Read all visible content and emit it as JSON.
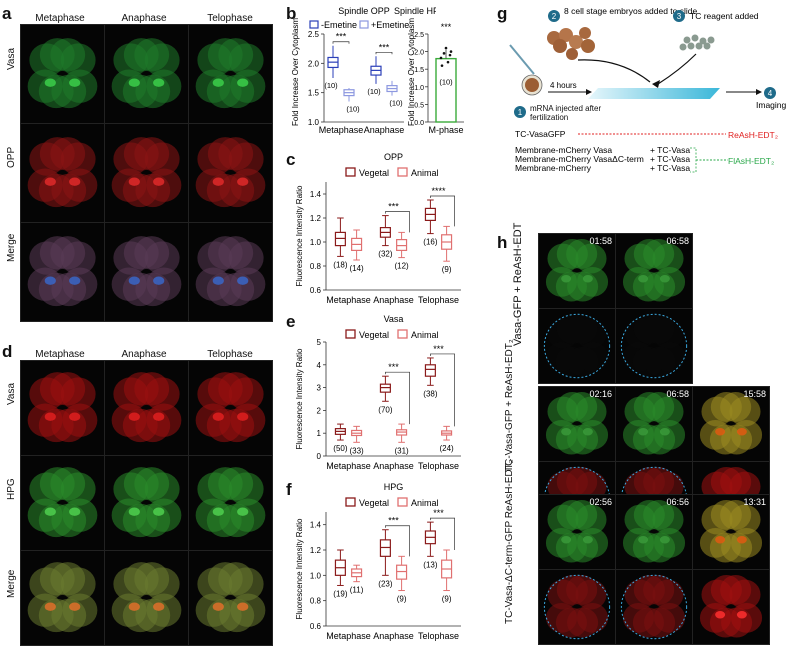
{
  "panels": {
    "a": {
      "label": "a",
      "cols": [
        "Metaphase",
        "Anaphase",
        "Telophase"
      ],
      "rows": [
        "Vasa",
        "OPP",
        "Merge"
      ],
      "annot": {
        "a": "a",
        "i": "i"
      }
    },
    "d": {
      "label": "d",
      "cols": [
        "Metaphase",
        "Anaphase",
        "Telophase"
      ],
      "rows": [
        "Vasa",
        "HPG",
        "Merge"
      ],
      "annot": {
        "a": "a",
        "i": "i"
      }
    },
    "b": {
      "label": "b",
      "title1": "Spindle OPP",
      "title2": "Spindle HPG",
      "legend": [
        "-Emetine",
        "+Emetine"
      ],
      "ylabel": "Fold Increase Over Cytoplasm",
      "sig": "***",
      "xticks": [
        "Metaphase",
        "Anaphase"
      ],
      "xtick2": "M-phase",
      "n1": [
        "(10)",
        "(10)",
        "(10)",
        "(10)"
      ],
      "n2": "(10)",
      "yticks1": [
        "1.0",
        "1.5",
        "2.0",
        "2.5"
      ],
      "yticks2": [
        "0.0",
        "0.5",
        "1.0",
        "1.5",
        "2.0",
        "2.5"
      ]
    },
    "c": {
      "label": "c",
      "title": "OPP",
      "legend": [
        "Vegetal",
        "Animal"
      ],
      "ylabel": "Fluorescence Intensity Ratio",
      "xticks": [
        "Metaphase",
        "Anaphase",
        "Telophase"
      ],
      "yticks": [
        "0.6",
        "0.8",
        "1.0",
        "1.2",
        "1.4"
      ],
      "n": [
        "(18)",
        "(14)",
        "(32)",
        "(12)",
        "(16)",
        "(9)"
      ],
      "sig": [
        "***",
        "****"
      ]
    },
    "e": {
      "label": "e",
      "title": "Vasa",
      "legend": [
        "Vegetal",
        "Animal"
      ],
      "ylabel": "Fluorescence Intensity Ratio",
      "xticks": [
        "Metaphase",
        "Anaphase",
        "Telophase"
      ],
      "yticks": [
        "0",
        "1",
        "2",
        "3",
        "4",
        "5"
      ],
      "n": [
        "(50)",
        "(33)",
        "(70)",
        "(31)",
        "(38)",
        "(24)"
      ],
      "sig": [
        "***",
        "***"
      ]
    },
    "f": {
      "label": "f",
      "title": "HPG",
      "legend": [
        "Vegetal",
        "Animal"
      ],
      "ylabel": "Fluorescence Intensity Ratio",
      "xticks": [
        "Metaphase",
        "Anaphase",
        "Telophase"
      ],
      "yticks": [
        "0.6",
        "0.8",
        "1.0",
        "1.2",
        "1.4"
      ],
      "n": [
        "(19)",
        "(11)",
        "(23)",
        "(9)",
        "(13)",
        "(9)"
      ],
      "sig": [
        "***",
        "***"
      ]
    },
    "g": {
      "label": "g",
      "step1_num": "1",
      "step1": "mRNA injected after fertilization",
      "step2_num": "2",
      "step2": "8 cell stage embryos added to slide",
      "step3_num": "3",
      "step3": "TC reagent added",
      "step4_num": "4",
      "step4": "Imaging",
      "time": "4 hours",
      "l1": "TC-VasaGFP",
      "l2": "Membrane-mCherry Vasa",
      "l3": "Membrane-mCherry VasaΔC-term",
      "l4": "Membrane-mCherry",
      "r2": "+ TC-Vasa",
      "r3": "+ TC-Vasa",
      "r4": "+ TC-Vasa",
      "reash": "ReAsH-EDT₂",
      "flash": "FlAsH-EDT₂"
    },
    "h": {
      "label": "h",
      "rows": [
        "Vasa-GFP + ReAsH-EDT",
        "TC-Vasa-GFP + ReAsH-EDT₂",
        "TC-Vasa-ΔC-term-GFP ReAsH-EDT₂"
      ],
      "times": [
        "01:58",
        "06:58",
        "02:16",
        "06:58",
        "15:58",
        "02:56",
        "06:56",
        "13:31"
      ]
    }
  },
  "chart_data": [
    {
      "type": "box",
      "panel": "b-left",
      "title": "Spindle OPP",
      "categories": [
        "Metaphase",
        "Anaphase"
      ],
      "series": [
        {
          "name": "-Emetine",
          "median": [
            2.02,
            1.88
          ],
          "q1": [
            1.93,
            1.8
          ],
          "q3": [
            2.1,
            1.95
          ],
          "min": [
            1.75,
            1.65
          ],
          "max": [
            2.3,
            2.12
          ]
        },
        {
          "name": "+Emetine",
          "median": [
            1.5,
            1.57
          ],
          "q1": [
            1.45,
            1.52
          ],
          "q3": [
            1.55,
            1.62
          ],
          "min": [
            1.35,
            1.45
          ],
          "max": [
            1.58,
            1.7
          ]
        }
      ],
      "ylim": [
        1.0,
        2.5
      ],
      "ylabel": "Fold Increase Over Cytoplasm"
    },
    {
      "type": "bar",
      "panel": "b-right",
      "title": "Spindle HPG",
      "categories": [
        "M-phase"
      ],
      "values": [
        1.8
      ],
      "ylim": [
        0,
        2.5
      ],
      "ylabel": "Fold Increase Over Cytoplasm"
    },
    {
      "type": "box",
      "panel": "c",
      "title": "OPP",
      "categories": [
        "Metaphase",
        "Anaphase",
        "Telophase"
      ],
      "series": [
        {
          "name": "Vegetal",
          "median": [
            1.03,
            1.08,
            1.23
          ],
          "q1": [
            0.97,
            1.04,
            1.18
          ],
          "q3": [
            1.08,
            1.12,
            1.28
          ],
          "min": [
            0.88,
            0.97,
            1.07
          ],
          "max": [
            1.2,
            1.22,
            1.35
          ]
        },
        {
          "name": "Animal",
          "median": [
            0.98,
            0.97,
            1.0
          ],
          "q1": [
            0.93,
            0.93,
            0.94
          ],
          "q3": [
            1.03,
            1.02,
            1.06
          ],
          "min": [
            0.85,
            0.87,
            0.84
          ],
          "max": [
            1.1,
            1.08,
            1.13
          ]
        }
      ],
      "ylim": [
        0.6,
        1.5
      ]
    },
    {
      "type": "box",
      "panel": "e",
      "title": "Vasa",
      "categories": [
        "Metaphase",
        "Anaphase",
        "Telophase"
      ],
      "series": [
        {
          "name": "Vegetal",
          "median": [
            1.08,
            3.0,
            3.8
          ],
          "q1": [
            0.95,
            2.8,
            3.5
          ],
          "q3": [
            1.2,
            3.15,
            4.0
          ],
          "min": [
            0.7,
            2.4,
            3.1
          ],
          "max": [
            1.4,
            3.5,
            4.3
          ]
        },
        {
          "name": "Animal",
          "median": [
            1.0,
            1.05,
            1.0
          ],
          "q1": [
            0.9,
            0.92,
            0.92
          ],
          "q3": [
            1.12,
            1.15,
            1.1
          ],
          "min": [
            0.6,
            0.6,
            0.7
          ],
          "max": [
            1.3,
            1.4,
            1.3
          ]
        }
      ],
      "ylim": [
        0,
        5
      ]
    },
    {
      "type": "box",
      "panel": "f",
      "title": "HPG",
      "categories": [
        "Metaphase",
        "Anaphase",
        "Telophase"
      ],
      "series": [
        {
          "name": "Vegetal",
          "median": [
            1.06,
            1.22,
            1.3
          ],
          "q1": [
            1.0,
            1.15,
            1.25
          ],
          "q3": [
            1.12,
            1.28,
            1.35
          ],
          "min": [
            0.92,
            1.0,
            1.15
          ],
          "max": [
            1.2,
            1.36,
            1.42
          ]
        },
        {
          "name": "Animal",
          "median": [
            1.02,
            1.03,
            1.05
          ],
          "q1": [
            0.99,
            0.97,
            0.98
          ],
          "q3": [
            1.05,
            1.08,
            1.12
          ],
          "min": [
            0.95,
            0.88,
            0.88
          ],
          "max": [
            1.08,
            1.15,
            1.2
          ]
        }
      ],
      "ylim": [
        0.6,
        1.5
      ]
    }
  ]
}
